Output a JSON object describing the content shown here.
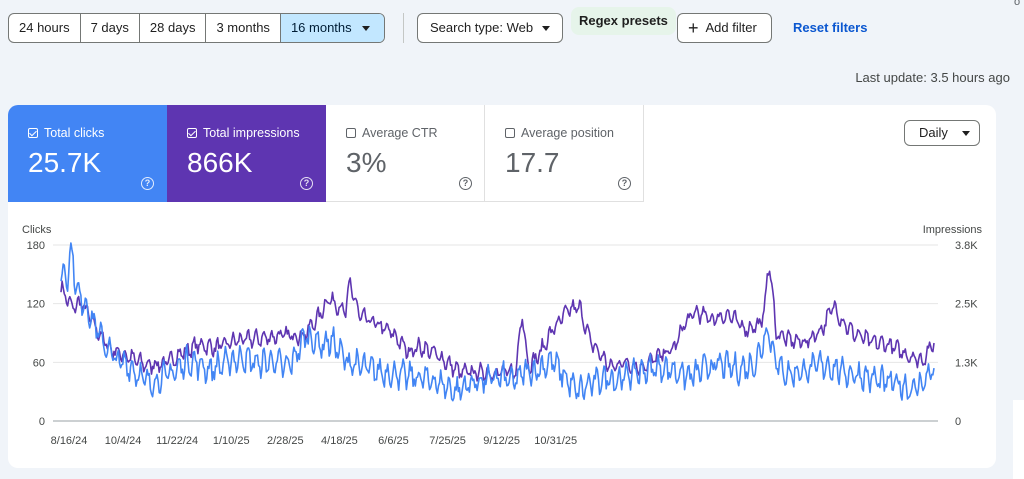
{
  "toolbar": {
    "ranges": [
      "24 hours",
      "7 days",
      "28 days",
      "3 months",
      "16 months"
    ],
    "active_range": "16 months",
    "search_type": "Search type: Web",
    "regex_presets": "Regex presets",
    "add_filter": "Add filter",
    "reset_filters": "Reset filters",
    "corner_glyph": "o"
  },
  "last_update": "Last update: 3.5 hours ago",
  "metrics": {
    "clicks": {
      "label": "Total clicks",
      "value": "25.7K",
      "checked": true,
      "color": "#4285f4"
    },
    "impressions": {
      "label": "Total impressions",
      "value": "866K",
      "checked": true,
      "color": "#5e35b1"
    },
    "ctr": {
      "label": "Average CTR",
      "value": "3%",
      "checked": false
    },
    "position": {
      "label": "Average position",
      "value": "17.7",
      "checked": false
    }
  },
  "granularity": "Daily",
  "chart_data": {
    "type": "line",
    "xlabel": "",
    "y_left_label": "Clicks",
    "y_right_label": "Impressions",
    "y_left_ticks": [
      "180",
      "120",
      "60",
      "0"
    ],
    "y_right_ticks": [
      "3.8K",
      "2.5K",
      "1.3K",
      "0"
    ],
    "x_tick_labels": [
      "8/16/24",
      "10/4/24",
      "11/22/24",
      "1/10/25",
      "2/28/25",
      "4/18/25",
      "6/6/25",
      "7/25/25",
      "9/12/25",
      "10/31/25"
    ],
    "ylim_left": [
      0,
      180
    ],
    "ylim_right": [
      0,
      3800
    ],
    "grid": true,
    "series": [
      {
        "name": "Clicks",
        "axis": "left",
        "color": "#4285f4",
        "anchors": [
          [
            0,
            140
          ],
          [
            3,
            158
          ],
          [
            6,
            148
          ],
          [
            10,
            178
          ],
          [
            14,
            132
          ],
          [
            22,
            120
          ],
          [
            32,
            95
          ],
          [
            40,
            78
          ],
          [
            50,
            62
          ],
          [
            60,
            58
          ],
          [
            70,
            48
          ],
          [
            80,
            38
          ],
          [
            92,
            45
          ],
          [
            105,
            52
          ],
          [
            115,
            62
          ],
          [
            125,
            58
          ],
          [
            135,
            52
          ],
          [
            150,
            60
          ],
          [
            165,
            65
          ],
          [
            180,
            58
          ],
          [
            190,
            62
          ],
          [
            205,
            55
          ],
          [
            210,
            62
          ],
          [
            222,
            88
          ],
          [
            235,
            78
          ],
          [
            245,
            82
          ],
          [
            260,
            60
          ],
          [
            275,
            55
          ],
          [
            290,
            50
          ],
          [
            305,
            48
          ],
          [
            320,
            45
          ],
          [
            335,
            42
          ],
          [
            345,
            38
          ],
          [
            358,
            30
          ],
          [
            370,
            38
          ],
          [
            385,
            42
          ],
          [
            400,
            45
          ],
          [
            410,
            40
          ],
          [
            420,
            50
          ],
          [
            432,
            52
          ],
          [
            445,
            62
          ],
          [
            460,
            40
          ],
          [
            468,
            30
          ],
          [
            480,
            38
          ],
          [
            495,
            45
          ],
          [
            505,
            42
          ],
          [
            515,
            48
          ],
          [
            530,
            52
          ],
          [
            545,
            55
          ],
          [
            560,
            50
          ],
          [
            570,
            45
          ],
          [
            585,
            55
          ],
          [
            600,
            58
          ],
          [
            615,
            52
          ],
          [
            630,
            60
          ],
          [
            640,
            95
          ],
          [
            650,
            55
          ],
          [
            660,
            48
          ],
          [
            675,
            52
          ],
          [
            690,
            58
          ],
          [
            698,
            55
          ],
          [
            710,
            50
          ],
          [
            730,
            45
          ],
          [
            745,
            40
          ],
          [
            760,
            38
          ],
          [
            770,
            32
          ],
          [
            780,
            38
          ],
          [
            791,
            55
          ]
        ],
        "noise": 14
      },
      {
        "name": "Impressions",
        "axis": "right",
        "color": "#5e35b1",
        "anchors": [
          [
            0,
            2880
          ],
          [
            5,
            2660
          ],
          [
            10,
            2450
          ],
          [
            18,
            2550
          ],
          [
            25,
            2300
          ],
          [
            35,
            1870
          ],
          [
            45,
            1550
          ],
          [
            55,
            1450
          ],
          [
            65,
            1350
          ],
          [
            78,
            1200
          ],
          [
            95,
            1250
          ],
          [
            110,
            1480
          ],
          [
            125,
            1650
          ],
          [
            140,
            1580
          ],
          [
            160,
            1750
          ],
          [
            180,
            1780
          ],
          [
            200,
            1850
          ],
          [
            220,
            1850
          ],
          [
            235,
            2300
          ],
          [
            242,
            2650
          ],
          [
            248,
            2550
          ],
          [
            258,
            2350
          ],
          [
            262,
            3000
          ],
          [
            270,
            2280
          ],
          [
            285,
            2100
          ],
          [
            300,
            1900
          ],
          [
            315,
            1500
          ],
          [
            325,
            1600
          ],
          [
            340,
            1450
          ],
          [
            350,
            1250
          ],
          [
            362,
            1050
          ],
          [
            380,
            1050
          ],
          [
            395,
            1050
          ],
          [
            412,
            1050
          ],
          [
            418,
            2400
          ],
          [
            423,
            1200
          ],
          [
            432,
            1380
          ],
          [
            445,
            1950
          ],
          [
            460,
            2400
          ],
          [
            470,
            2450
          ],
          [
            480,
            1700
          ],
          [
            490,
            1400
          ],
          [
            498,
            1150
          ],
          [
            510,
            1280
          ],
          [
            525,
            1150
          ],
          [
            540,
            1380
          ],
          [
            555,
            1550
          ],
          [
            565,
            2100
          ],
          [
            575,
            2350
          ],
          [
            590,
            2200
          ],
          [
            605,
            2300
          ],
          [
            620,
            1980
          ],
          [
            635,
            2100
          ],
          [
            642,
            3400
          ],
          [
            648,
            1900
          ],
          [
            660,
            1750
          ],
          [
            675,
            1700
          ],
          [
            690,
            2000
          ],
          [
            700,
            2500
          ],
          [
            708,
            2150
          ],
          [
            718,
            1900
          ],
          [
            735,
            1700
          ],
          [
            750,
            1650
          ],
          [
            765,
            1450
          ],
          [
            780,
            1300
          ],
          [
            791,
            1700
          ]
        ],
        "noise": 180
      }
    ]
  }
}
